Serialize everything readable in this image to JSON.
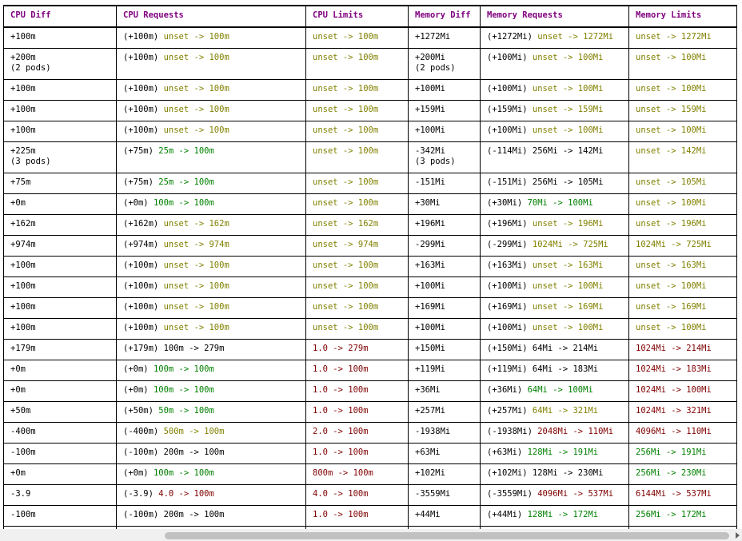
{
  "headers": [
    "CPU Diff",
    "CPU Requests",
    "CPU Limits",
    "Memory Diff",
    "Memory Requests",
    "Memory Limits"
  ],
  "rows": [
    {
      "cpu_diff": "+100m",
      "cpu_diff_sub": "",
      "cpu_req_delta": "(+100m)",
      "cpu_req": "unset -> 100m",
      "cpu_req_color": "olive",
      "cpu_lim": "unset -> 100m",
      "cpu_lim_color": "olive",
      "mem_diff": "+1272Mi",
      "mem_diff_sub": "",
      "mem_req_delta": "(+1272Mi)",
      "mem_req": "unset -> 1272Mi",
      "mem_req_color": "olive",
      "mem_lim": "unset -> 1272Mi",
      "mem_lim_color": "olive"
    },
    {
      "cpu_diff": "+200m",
      "cpu_diff_sub": "(2 pods)",
      "cpu_req_delta": "(+100m)",
      "cpu_req": "unset -> 100m",
      "cpu_req_color": "olive",
      "cpu_lim": "unset -> 100m",
      "cpu_lim_color": "olive",
      "mem_diff": "+200Mi",
      "mem_diff_sub": "(2 pods)",
      "mem_req_delta": "(+100Mi)",
      "mem_req": "unset -> 100Mi",
      "mem_req_color": "olive",
      "mem_lim": "unset -> 100Mi",
      "mem_lim_color": "olive"
    },
    {
      "cpu_diff": "+100m",
      "cpu_diff_sub": "",
      "cpu_req_delta": "(+100m)",
      "cpu_req": "unset -> 100m",
      "cpu_req_color": "olive",
      "cpu_lim": "unset -> 100m",
      "cpu_lim_color": "olive",
      "mem_diff": "+100Mi",
      "mem_diff_sub": "",
      "mem_req_delta": "(+100Mi)",
      "mem_req": "unset -> 100Mi",
      "mem_req_color": "olive",
      "mem_lim": "unset -> 100Mi",
      "mem_lim_color": "olive"
    },
    {
      "cpu_diff": "+100m",
      "cpu_diff_sub": "",
      "cpu_req_delta": "(+100m)",
      "cpu_req": "unset -> 100m",
      "cpu_req_color": "olive",
      "cpu_lim": "unset -> 100m",
      "cpu_lim_color": "olive",
      "mem_diff": "+159Mi",
      "mem_diff_sub": "",
      "mem_req_delta": "(+159Mi)",
      "mem_req": "unset -> 159Mi",
      "mem_req_color": "olive",
      "mem_lim": "unset -> 159Mi",
      "mem_lim_color": "olive"
    },
    {
      "cpu_diff": "+100m",
      "cpu_diff_sub": "",
      "cpu_req_delta": "(+100m)",
      "cpu_req": "unset -> 100m",
      "cpu_req_color": "olive",
      "cpu_lim": "unset -> 100m",
      "cpu_lim_color": "olive",
      "mem_diff": "+100Mi",
      "mem_diff_sub": "",
      "mem_req_delta": "(+100Mi)",
      "mem_req": "unset -> 100Mi",
      "mem_req_color": "olive",
      "mem_lim": "unset -> 100Mi",
      "mem_lim_color": "olive"
    },
    {
      "cpu_diff": "+225m",
      "cpu_diff_sub": "(3 pods)",
      "cpu_req_delta": "(+75m)",
      "cpu_req": "25m -> 100m",
      "cpu_req_color": "green",
      "cpu_lim": "unset -> 100m",
      "cpu_lim_color": "olive",
      "mem_diff": "-342Mi",
      "mem_diff_sub": "(3 pods)",
      "mem_req_delta": "(-114Mi)",
      "mem_req": "256Mi -> 142Mi",
      "mem_req_color": "plain",
      "mem_lim": "unset -> 142Mi",
      "mem_lim_color": "olive"
    },
    {
      "cpu_diff": "+75m",
      "cpu_diff_sub": "",
      "cpu_req_delta": "(+75m)",
      "cpu_req": "25m -> 100m",
      "cpu_req_color": "green",
      "cpu_lim": "unset -> 100m",
      "cpu_lim_color": "olive",
      "mem_diff": "-151Mi",
      "mem_diff_sub": "",
      "mem_req_delta": "(-151Mi)",
      "mem_req": "256Mi -> 105Mi",
      "mem_req_color": "plain",
      "mem_lim": "unset -> 105Mi",
      "mem_lim_color": "olive"
    },
    {
      "cpu_diff": "+0m",
      "cpu_diff_sub": "",
      "cpu_req_delta": "(+0m)",
      "cpu_req": "100m -> 100m",
      "cpu_req_color": "green",
      "cpu_lim": "unset -> 100m",
      "cpu_lim_color": "olive",
      "mem_diff": "+30Mi",
      "mem_diff_sub": "",
      "mem_req_delta": "(+30Mi)",
      "mem_req": "70Mi -> 100Mi",
      "mem_req_color": "green",
      "mem_lim": "unset -> 100Mi",
      "mem_lim_color": "olive"
    },
    {
      "cpu_diff": "+162m",
      "cpu_diff_sub": "",
      "cpu_req_delta": "(+162m)",
      "cpu_req": "unset -> 162m",
      "cpu_req_color": "olive",
      "cpu_lim": "unset -> 162m",
      "cpu_lim_color": "olive",
      "mem_diff": "+196Mi",
      "mem_diff_sub": "",
      "mem_req_delta": "(+196Mi)",
      "mem_req": "unset -> 196Mi",
      "mem_req_color": "olive",
      "mem_lim": "unset -> 196Mi",
      "mem_lim_color": "olive"
    },
    {
      "cpu_diff": "+974m",
      "cpu_diff_sub": "",
      "cpu_req_delta": "(+974m)",
      "cpu_req": "unset -> 974m",
      "cpu_req_color": "olive",
      "cpu_lim": "unset -> 974m",
      "cpu_lim_color": "olive",
      "mem_diff": "-299Mi",
      "mem_diff_sub": "",
      "mem_req_delta": "(-299Mi)",
      "mem_req": "1024Mi -> 725Mi",
      "mem_req_color": "olive",
      "mem_lim": "1024Mi -> 725Mi",
      "mem_lim_color": "olive"
    },
    {
      "cpu_diff": "+100m",
      "cpu_diff_sub": "",
      "cpu_req_delta": "(+100m)",
      "cpu_req": "unset -> 100m",
      "cpu_req_color": "olive",
      "cpu_lim": "unset -> 100m",
      "cpu_lim_color": "olive",
      "mem_diff": "+163Mi",
      "mem_diff_sub": "",
      "mem_req_delta": "(+163Mi)",
      "mem_req": "unset -> 163Mi",
      "mem_req_color": "olive",
      "mem_lim": "unset -> 163Mi",
      "mem_lim_color": "olive"
    },
    {
      "cpu_diff": "+100m",
      "cpu_diff_sub": "",
      "cpu_req_delta": "(+100m)",
      "cpu_req": "unset -> 100m",
      "cpu_req_color": "olive",
      "cpu_lim": "unset -> 100m",
      "cpu_lim_color": "olive",
      "mem_diff": "+100Mi",
      "mem_diff_sub": "",
      "mem_req_delta": "(+100Mi)",
      "mem_req": "unset -> 100Mi",
      "mem_req_color": "olive",
      "mem_lim": "unset -> 100Mi",
      "mem_lim_color": "olive"
    },
    {
      "cpu_diff": "+100m",
      "cpu_diff_sub": "",
      "cpu_req_delta": "(+100m)",
      "cpu_req": "unset -> 100m",
      "cpu_req_color": "olive",
      "cpu_lim": "unset -> 100m",
      "cpu_lim_color": "olive",
      "mem_diff": "+169Mi",
      "mem_diff_sub": "",
      "mem_req_delta": "(+169Mi)",
      "mem_req": "unset -> 169Mi",
      "mem_req_color": "olive",
      "mem_lim": "unset -> 169Mi",
      "mem_lim_color": "olive"
    },
    {
      "cpu_diff": "+100m",
      "cpu_diff_sub": "",
      "cpu_req_delta": "(+100m)",
      "cpu_req": "unset -> 100m",
      "cpu_req_color": "olive",
      "cpu_lim": "unset -> 100m",
      "cpu_lim_color": "olive",
      "mem_diff": "+100Mi",
      "mem_diff_sub": "",
      "mem_req_delta": "(+100Mi)",
      "mem_req": "unset -> 100Mi",
      "mem_req_color": "olive",
      "mem_lim": "unset -> 100Mi",
      "mem_lim_color": "olive"
    },
    {
      "cpu_diff": "+179m",
      "cpu_diff_sub": "",
      "cpu_req_delta": "(+179m)",
      "cpu_req": "100m -> 279m",
      "cpu_req_color": "plain",
      "cpu_lim": "1.0 -> 279m",
      "cpu_lim_color": "red",
      "mem_diff": "+150Mi",
      "mem_diff_sub": "",
      "mem_req_delta": "(+150Mi)",
      "mem_req": "64Mi -> 214Mi",
      "mem_req_color": "plain",
      "mem_lim": "1024Mi -> 214Mi",
      "mem_lim_color": "red"
    },
    {
      "cpu_diff": "+0m",
      "cpu_diff_sub": "",
      "cpu_req_delta": "(+0m)",
      "cpu_req": "100m -> 100m",
      "cpu_req_color": "green",
      "cpu_lim": "1.0 -> 100m",
      "cpu_lim_color": "red",
      "mem_diff": "+119Mi",
      "mem_diff_sub": "",
      "mem_req_delta": "(+119Mi)",
      "mem_req": "64Mi -> 183Mi",
      "mem_req_color": "plain",
      "mem_lim": "1024Mi -> 183Mi",
      "mem_lim_color": "red"
    },
    {
      "cpu_diff": "+0m",
      "cpu_diff_sub": "",
      "cpu_req_delta": "(+0m)",
      "cpu_req": "100m -> 100m",
      "cpu_req_color": "green",
      "cpu_lim": "1.0 -> 100m",
      "cpu_lim_color": "red",
      "mem_diff": "+36Mi",
      "mem_diff_sub": "",
      "mem_req_delta": "(+36Mi)",
      "mem_req": "64Mi -> 100Mi",
      "mem_req_color": "green",
      "mem_lim": "1024Mi -> 100Mi",
      "mem_lim_color": "red"
    },
    {
      "cpu_diff": "+50m",
      "cpu_diff_sub": "",
      "cpu_req_delta": "(+50m)",
      "cpu_req": "50m -> 100m",
      "cpu_req_color": "green",
      "cpu_lim": "1.0 -> 100m",
      "cpu_lim_color": "red",
      "mem_diff": "+257Mi",
      "mem_diff_sub": "",
      "mem_req_delta": "(+257Mi)",
      "mem_req": "64Mi -> 321Mi",
      "mem_req_color": "olive",
      "mem_lim": "1024Mi -> 321Mi",
      "mem_lim_color": "red"
    },
    {
      "cpu_diff": "-400m",
      "cpu_diff_sub": "",
      "cpu_req_delta": "(-400m)",
      "cpu_req": "500m -> 100m",
      "cpu_req_color": "olive",
      "cpu_lim": "2.0 -> 100m",
      "cpu_lim_color": "red",
      "mem_diff": "-1938Mi",
      "mem_diff_sub": "",
      "mem_req_delta": "(-1938Mi)",
      "mem_req": "2048Mi -> 110Mi",
      "mem_req_color": "red",
      "mem_lim": "4096Mi -> 110Mi",
      "mem_lim_color": "red"
    },
    {
      "cpu_diff": "-100m",
      "cpu_diff_sub": "",
      "cpu_req_delta": "(-100m)",
      "cpu_req": "200m -> 100m",
      "cpu_req_color": "plain",
      "cpu_lim": "1.0 -> 100m",
      "cpu_lim_color": "red",
      "mem_diff": "+63Mi",
      "mem_diff_sub": "",
      "mem_req_delta": "(+63Mi)",
      "mem_req": "128Mi -> 191Mi",
      "mem_req_color": "green",
      "mem_lim": "256Mi -> 191Mi",
      "mem_lim_color": "green"
    },
    {
      "cpu_diff": "+0m",
      "cpu_diff_sub": "",
      "cpu_req_delta": "(+0m)",
      "cpu_req": "100m -> 100m",
      "cpu_req_color": "green",
      "cpu_lim": "800m -> 100m",
      "cpu_lim_color": "red",
      "mem_diff": "+102Mi",
      "mem_diff_sub": "",
      "mem_req_delta": "(+102Mi)",
      "mem_req": "128Mi -> 230Mi",
      "mem_req_color": "plain",
      "mem_lim": "256Mi -> 230Mi",
      "mem_lim_color": "green"
    },
    {
      "cpu_diff": "-3.9",
      "cpu_diff_sub": "",
      "cpu_req_delta": "(-3.9)",
      "cpu_req": "4.0 -> 100m",
      "cpu_req_color": "red",
      "cpu_lim": "4.0 -> 100m",
      "cpu_lim_color": "red",
      "mem_diff": "-3559Mi",
      "mem_diff_sub": "",
      "mem_req_delta": "(-3559Mi)",
      "mem_req": "4096Mi -> 537Mi",
      "mem_req_color": "red",
      "mem_lim": "6144Mi -> 537Mi",
      "mem_lim_color": "red"
    },
    {
      "cpu_diff": "-100m",
      "cpu_diff_sub": "",
      "cpu_req_delta": "(-100m)",
      "cpu_req": "200m -> 100m",
      "cpu_req_color": "plain",
      "cpu_lim": "1.0 -> 100m",
      "cpu_lim_color": "red",
      "mem_diff": "+44Mi",
      "mem_diff_sub": "",
      "mem_req_delta": "(+44Mi)",
      "mem_req": "128Mi -> 172Mi",
      "mem_req_color": "green",
      "mem_lim": "256Mi -> 172Mi",
      "mem_lim_color": "green"
    },
    {
      "cpu_diff": "",
      "cpu_diff_sub": "",
      "cpu_req_delta": "",
      "cpu_req": "",
      "cpu_req_color": "plain",
      "cpu_lim": "",
      "cpu_lim_color": "plain",
      "mem_diff": "",
      "mem_diff_sub": "",
      "mem_req_delta": "",
      "mem_req": "",
      "mem_req_color": "plain",
      "mem_lim": "",
      "mem_lim_color": "plain"
    }
  ],
  "colors": {
    "header": "#800080",
    "olive": "#808000",
    "green": "#008000",
    "red": "#800000",
    "plain": "#000000"
  }
}
